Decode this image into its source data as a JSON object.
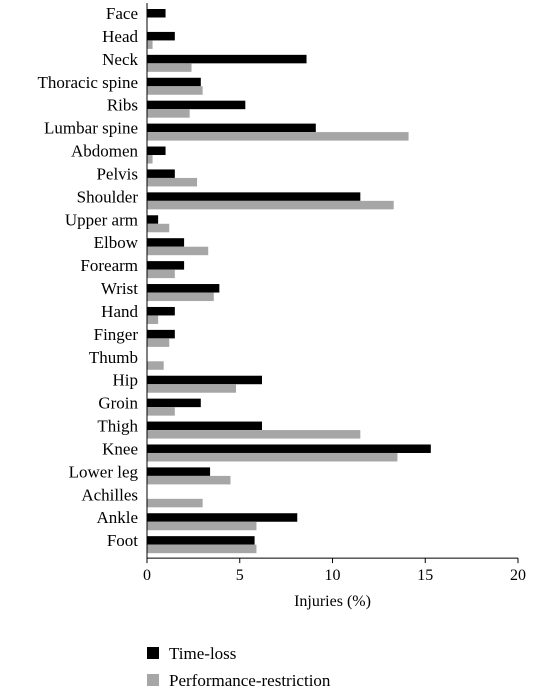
{
  "chart_data": {
    "type": "bar",
    "orientation": "horizontal",
    "categories": [
      "Face",
      "Head",
      "Neck",
      "Thoracic spine",
      "Ribs",
      "Lumbar spine",
      "Abdomen",
      "Pelvis",
      "Shoulder",
      "Upper arm",
      "Elbow",
      "Forearm",
      "Wrist",
      "Hand",
      "Finger",
      "Thumb",
      "Hip",
      "Groin",
      "Thigh",
      "Knee",
      "Lower leg",
      "Achilles",
      "Ankle",
      "Foot"
    ],
    "series": [
      {
        "name": "Time-loss",
        "color": "#000000",
        "values": [
          1.0,
          1.5,
          8.6,
          2.9,
          5.3,
          9.1,
          1.0,
          1.5,
          11.5,
          0.6,
          2.0,
          2.0,
          3.9,
          1.5,
          1.5,
          0,
          6.2,
          2.9,
          6.2,
          15.3,
          3.4,
          0,
          8.1,
          5.8
        ]
      },
      {
        "name": "Performance-restriction",
        "color": "#a6a6a6",
        "values": [
          0,
          0.3,
          2.4,
          3.0,
          2.3,
          14.1,
          0.3,
          2.7,
          13.3,
          1.2,
          3.3,
          1.5,
          3.6,
          0.6,
          1.2,
          0.9,
          4.8,
          1.5,
          11.5,
          13.5,
          4.5,
          3.0,
          5.9,
          5.9
        ]
      }
    ],
    "xlabel": "Injuries (%)",
    "xlim": [
      0,
      20
    ],
    "xticks": [
      "0",
      "5",
      "10",
      "15",
      "20"
    ],
    "grid": false,
    "legend_position": "bottom"
  }
}
